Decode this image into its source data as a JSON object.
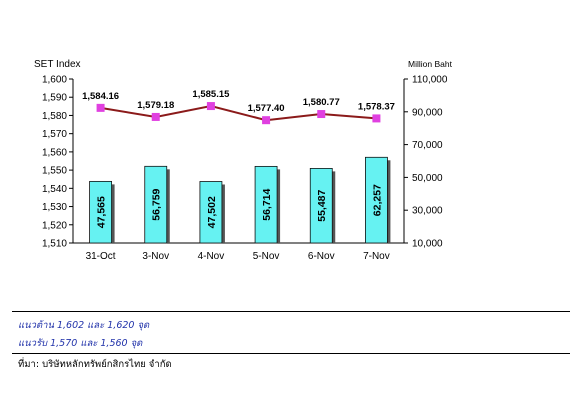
{
  "chart_data": {
    "type": "bar",
    "categories": [
      "31-Oct",
      "3-Nov",
      "4-Nov",
      "5-Nov",
      "6-Nov",
      "7-Nov"
    ],
    "series": [
      {
        "name": "",
        "kind": "bar",
        "axis": "right",
        "values": [
          47565,
          56759,
          47502,
          56714,
          55487,
          62257
        ],
        "labels": [
          "47,565",
          "56,759",
          "47,502",
          "56,714",
          "55,487",
          "62,257"
        ],
        "color": "#66f2f2"
      },
      {
        "name": "",
        "kind": "line",
        "axis": "left",
        "values": [
          1584.16,
          1579.18,
          1585.15,
          1577.4,
          1580.77,
          1578.37
        ],
        "labels": [
          "1,584.16",
          "1,579.18",
          "1,585.15",
          "1,577.40",
          "1,580.77",
          "1,578.37"
        ],
        "color": "#8b1a1a",
        "marker_color": "#e040e0"
      }
    ],
    "ylabel_left": "SET Index",
    "ylabel_right": "Million Baht",
    "ylim_left": [
      1510,
      1600
    ],
    "ylim_right": [
      10000,
      110000
    ],
    "yticks_left": [
      "1,510",
      "1,520",
      "1,530",
      "1,540",
      "1,550",
      "1,560",
      "1,570",
      "1,580",
      "1,590",
      "1,600"
    ],
    "yticks_right": [
      "10,000",
      "30,000",
      "50,000",
      "70,000",
      "90,000",
      "110,000"
    ],
    "grid": false,
    "legend": "none"
  },
  "notes": {
    "resistance": "แนวต้าน 1,602 และ 1,620 จุด",
    "support": "แนวรับ 1,570 และ 1,560 จุด",
    "source": "ที่มา: บริษัทหลักทรัพย์กสิกรไทย จำกัด"
  }
}
